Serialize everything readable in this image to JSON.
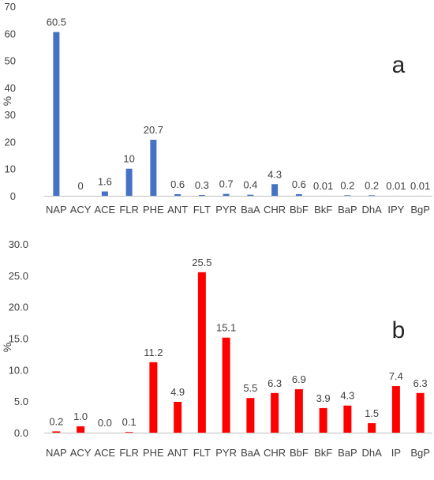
{
  "chart_data": [
    {
      "type": "bar",
      "panel_label": "a",
      "ylabel": "%",
      "ylim": [
        0,
        70
      ],
      "yticks": [
        0,
        10,
        20,
        30,
        40,
        50,
        60,
        70
      ],
      "ytick_labels": [
        "0",
        "10",
        "20",
        "30",
        "40",
        "50",
        "60",
        "70"
      ],
      "categories": [
        "NAP",
        "ACY",
        "ACE",
        "FLR",
        "PHE",
        "ANT",
        "FLT",
        "PYR",
        "BaA",
        "CHR",
        "BbF",
        "BkF",
        "BaP",
        "DhA",
        "IPY",
        "BgP"
      ],
      "values": [
        60.5,
        0,
        1.6,
        10,
        20.7,
        0.6,
        0.3,
        0.7,
        0.4,
        4.3,
        0.6,
        0.01,
        0.2,
        0.2,
        0.01,
        0.01
      ],
      "data_labels": [
        "60.5",
        "0",
        "1.6",
        "10",
        "20.7",
        "0.6",
        "0.3",
        "0.7",
        "0.4",
        "4.3",
        "0.6",
        "0.01",
        "0.2",
        "0.2",
        "0.01",
        "0.01"
      ],
      "bar_color": "#4472C4",
      "grid": false
    },
    {
      "type": "bar",
      "panel_label": "b",
      "ylabel": "%",
      "ylim": [
        0,
        30
      ],
      "yticks": [
        0,
        5,
        10,
        15,
        20,
        25,
        30
      ],
      "ytick_labels": [
        "0.0",
        "5.0",
        "10.0",
        "15.0",
        "20.0",
        "25.0",
        "30.0"
      ],
      "categories": [
        "NAP",
        "ACY",
        "ACE",
        "FLR",
        "PHE",
        "ANT",
        "FLT",
        "PYR",
        "BaA",
        "CHR",
        "BbF",
        "BkF",
        "BaP",
        "DhA",
        "IP",
        "BgP"
      ],
      "values": [
        0.2,
        1.0,
        0.0,
        0.1,
        11.2,
        4.9,
        25.5,
        15.1,
        5.5,
        6.3,
        6.9,
        3.9,
        4.3,
        1.5,
        7.4,
        6.3
      ],
      "data_labels": [
        "0.2",
        "1.0",
        "0.0",
        "0.1",
        "11.2",
        "4.9",
        "25.5",
        "15.1",
        "5.5",
        "6.3",
        "6.9",
        "3.9",
        "4.3",
        "1.5",
        "7.4",
        "6.3"
      ],
      "bar_color": "#FF0000",
      "grid": false
    }
  ]
}
